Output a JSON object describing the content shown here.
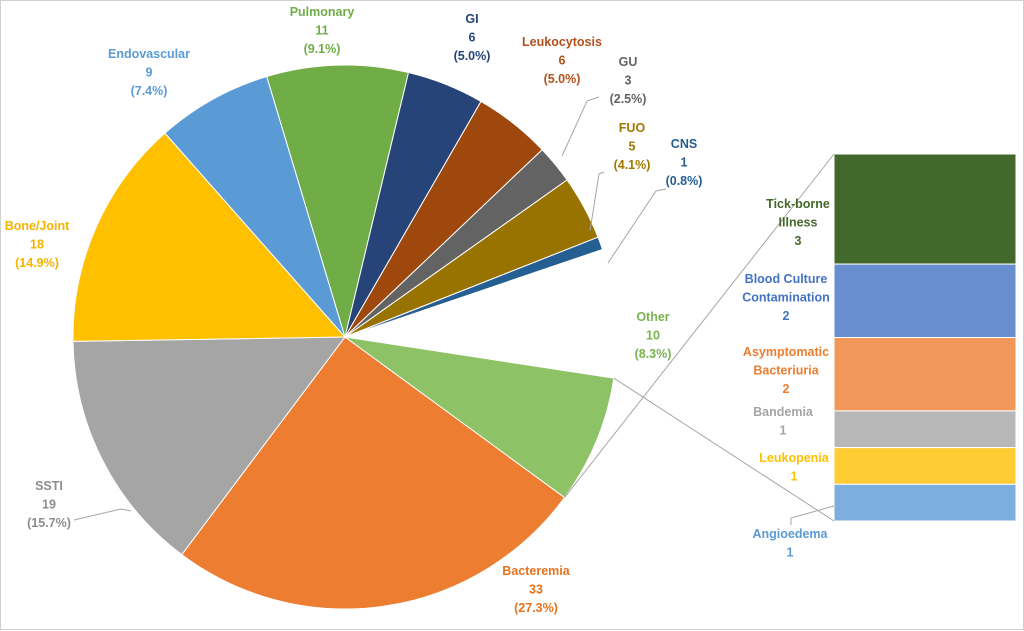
{
  "chart_data": {
    "type": "bar-of-pie",
    "pie": [
      {
        "label": "Other",
        "count": "10",
        "pct": "(8.3%)",
        "value": 10,
        "color": "#8dc266",
        "label_color": "#7ab34f"
      },
      {
        "label": "Bacteremia",
        "count": "33",
        "pct": "(27.3%)",
        "value": 33,
        "color": "#ed7d31",
        "label_color": "#e8731f"
      },
      {
        "label": "SSTI",
        "count": "19",
        "pct": "(15.7%)",
        "value": 19,
        "color": "#a5a5a5",
        "label_color": "#8c8c8c"
      },
      {
        "label": "Bone/Joint",
        "count": "18",
        "pct": "(14.9%)",
        "value": 18,
        "color": "#ffc000",
        "label_color": "#f4b400"
      },
      {
        "label": "Endovascular",
        "count": "9",
        "pct": "(7.4%)",
        "value": 9,
        "color": "#5b9bd5",
        "label_color": "#5b9bd5"
      },
      {
        "label": "Pulmonary",
        "count": "11",
        "pct": "(9.1%)",
        "value": 11,
        "color": "#70ad47",
        "label_color": "#70ad47"
      },
      {
        "label": "GI",
        "count": "6",
        "pct": "(5.0%)",
        "value": 6,
        "color": "#264478",
        "label_color": "#264478"
      },
      {
        "label": "Leukocytosis",
        "count": "6",
        "pct": "(5.0%)",
        "value": 6,
        "color": "#9e480e",
        "label_color": "#b4501c"
      },
      {
        "label": "GU",
        "count": "3",
        "pct": "(2.5%)",
        "value": 3,
        "color": "#636363",
        "label_color": "#636363"
      },
      {
        "label": "FUO",
        "count": "5",
        "pct": "(4.1%)",
        "value": 5,
        "color": "#997300",
        "label_color": "#a07800"
      },
      {
        "label": "CNS",
        "count": "1",
        "pct": "(0.8%)",
        "value": 1,
        "color": "#255e91",
        "label_color": "#255e91"
      }
    ],
    "bar": [
      {
        "label": "Tick-borne Illness",
        "lines": [
          "Tick-borne",
          "Illness"
        ],
        "count": "3",
        "value": 3,
        "color": "#43682b",
        "label_color": "#43682b"
      },
      {
        "label": "Blood Culture Contamination",
        "lines": [
          "Blood Culture",
          "Contamination"
        ],
        "count": "2",
        "value": 2,
        "color": "#698ed0",
        "label_color": "#4472c4"
      },
      {
        "label": "Asymptomatic Bacteriuria",
        "lines": [
          "Asymptomatic",
          "Bacteriuria"
        ],
        "count": "2",
        "value": 2,
        "color": "#f1975a",
        "label_color": "#ed7d31"
      },
      {
        "label": "Bandemia",
        "lines": [
          "Bandemia"
        ],
        "count": "1",
        "value": 1,
        "color": "#b7b7b7",
        "label_color": "#a5a5a5"
      },
      {
        "label": "Leukopenia",
        "lines": [
          "Leukopenia"
        ],
        "count": "1",
        "value": 1,
        "color": "#ffcd33",
        "label_color": "#ffc000"
      },
      {
        "label": "Angioedema",
        "lines": [
          "Angioedema"
        ],
        "count": "1",
        "value": 1,
        "color": "#7cafdd",
        "label_color": "#5b9bd5"
      }
    ]
  }
}
